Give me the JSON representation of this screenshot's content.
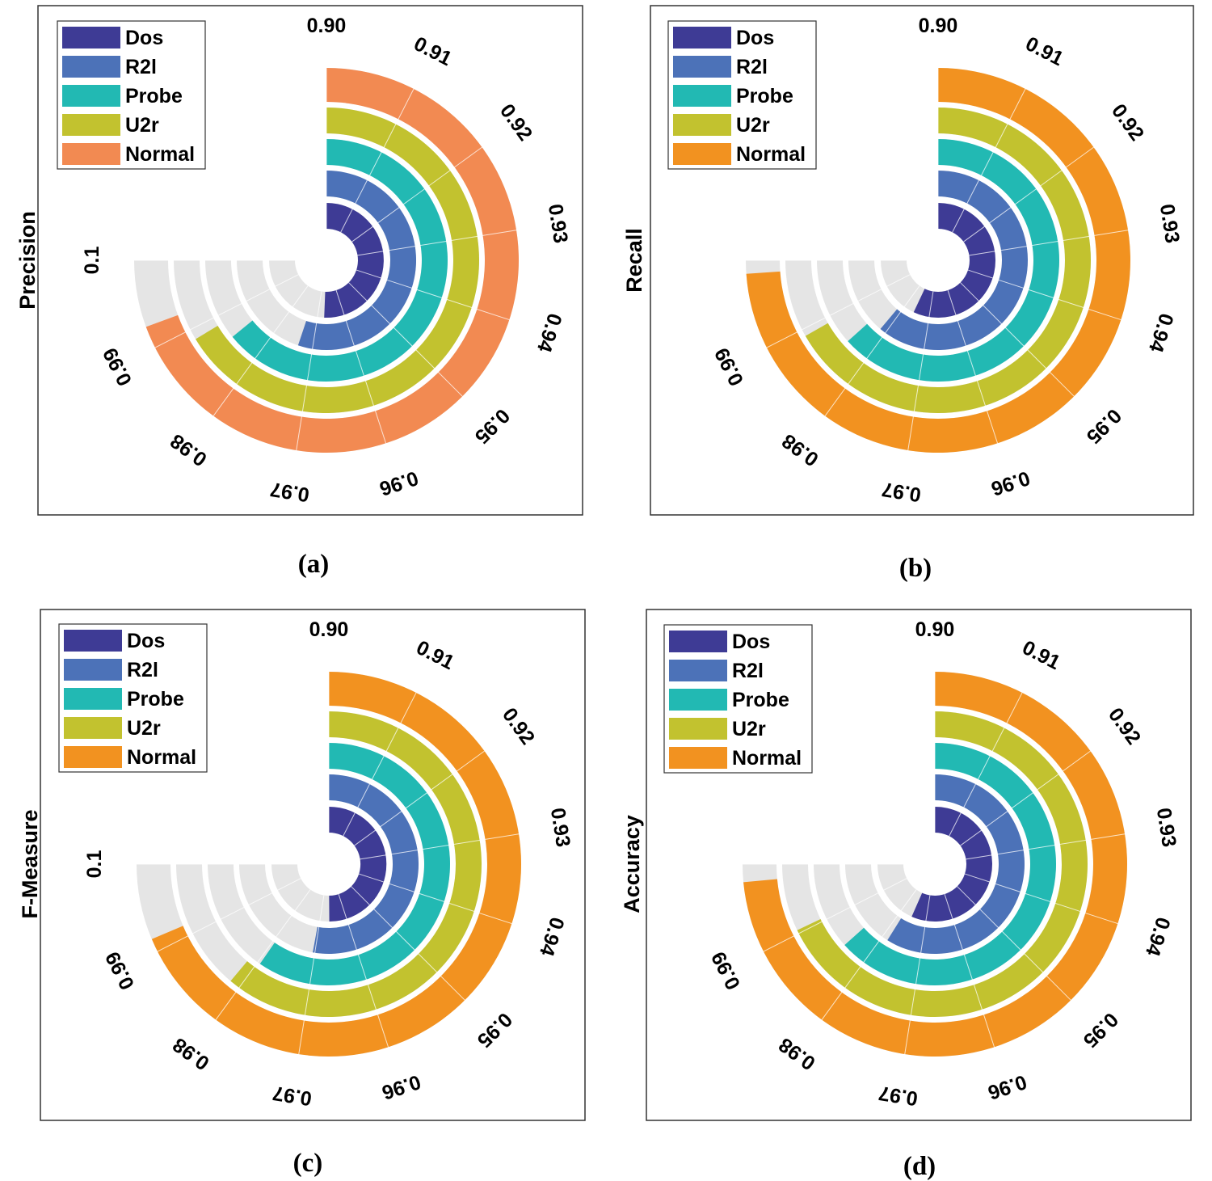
{
  "chart_data": [
    {
      "type": "radial-bar",
      "panel": "(a)",
      "ylabel": "Precision",
      "ticks": [
        "0.90",
        "0.91",
        "0.92",
        "0.93",
        "0.94",
        "0.95",
        "0.96",
        "0.97",
        "0.98",
        "0.99",
        "0.1"
      ],
      "categories": [
        "Dos",
        "R2l",
        "Probe",
        "U2r",
        "Normal"
      ],
      "values": [
        0.9675,
        0.9735,
        0.9855,
        0.9885,
        0.9925
      ],
      "colors": [
        "#3E3B95",
        "#4C72B8",
        "#22B9B3",
        "#C2C22F",
        "#F28A52"
      ]
    },
    {
      "type": "radial-bar",
      "panel": "(b)",
      "ylabel": "Recall",
      "ticks": [
        "0.90",
        "0.91",
        "0.92",
        "0.93",
        "0.94",
        "0.95",
        "0.96",
        "0.97",
        "0.98",
        "0.99"
      ],
      "categories": [
        "Dos",
        "R2l",
        "Probe",
        "U2r",
        "Normal"
      ],
      "values": [
        0.976,
        0.9815,
        0.9845,
        0.989,
        0.9985
      ],
      "colors": [
        "#3E3B95",
        "#4C72B8",
        "#22B9B3",
        "#C2C22F",
        "#F29220"
      ]
    },
    {
      "type": "radial-bar",
      "panel": "(c)",
      "ylabel": "F-Measure",
      "ticks": [
        "0.90",
        "0.91",
        "0.92",
        "0.93",
        "0.94",
        "0.95",
        "0.96",
        "0.97",
        "0.98",
        "0.99",
        "0.1"
      ],
      "categories": [
        "Dos",
        "R2l",
        "Probe",
        "U2r",
        "Normal"
      ],
      "values": [
        0.9665,
        0.9705,
        0.9795,
        0.9815,
        0.9915
      ],
      "colors": [
        "#3E3B95",
        "#4C72B8",
        "#22B9B3",
        "#C2C22F",
        "#F29220"
      ]
    },
    {
      "type": "radial-bar",
      "panel": "(d)",
      "ylabel": "Accuracy",
      "ticks": [
        "0.90",
        "0.91",
        "0.92",
        "0.93",
        "0.94",
        "0.95",
        "0.96",
        "0.97",
        "0.98",
        "0.99"
      ],
      "categories": [
        "Dos",
        "R2l",
        "Probe",
        "U2r",
        "Normal"
      ],
      "values": [
        0.9755,
        0.9785,
        0.9845,
        0.9905,
        0.998
      ],
      "colors": [
        "#3E3B95",
        "#4C72B8",
        "#22B9B3",
        "#C2C22F",
        "#F29220"
      ]
    }
  ]
}
